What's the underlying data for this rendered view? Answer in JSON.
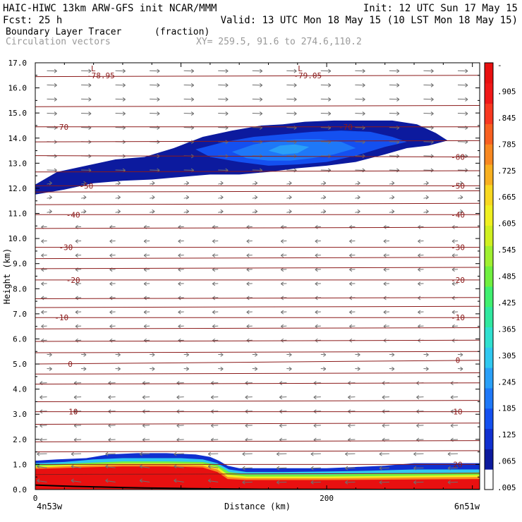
{
  "header": {
    "line1_left": "HAIC-HIWC 13km ARW-GFS init  NCAR/MMM",
    "line1_right": "Init: 12 UTC Sun 17 May 15",
    "line2_left": "Fcst:   25 h",
    "line2_right": "Valid: 13 UTC Mon 18 May 15 (10 LST Mon 18 May 15)",
    "field_name": "Boundary Layer Tracer",
    "field_units": "(fraction)",
    "vector_label": "Circulation vectors",
    "xy_label": "XY= 259.5, 91.6 to 274.6,110.2"
  },
  "colors": {
    "contour_line": "#8b1a1a",
    "vector": "#707070",
    "text": "#000000",
    "scale": [
      "#ffffff",
      "#0c1a9e",
      "#1030d0",
      "#1450f0",
      "#1e78f8",
      "#2aa0f8",
      "#30c8f0",
      "#30e0d0",
      "#30e8a0",
      "#40f070",
      "#70f040",
      "#a0f030",
      "#d0f020",
      "#f0f020",
      "#f8d820",
      "#f8b020",
      "#f88820",
      "#f86020",
      "#f83820",
      "#f01818",
      "#e81010"
    ]
  },
  "chart_data": {
    "type": "contour",
    "title": "Boundary Layer Tracer",
    "units": "(fraction)",
    "xlabel": "Distance (km)",
    "ylabel": "Height (km)",
    "xlim": [
      0,
      305
    ],
    "ylim": [
      0,
      17
    ],
    "x_ticks": [
      {
        "value": 0,
        "label": "0"
      },
      {
        "value": 200,
        "label": "200"
      }
    ],
    "x_end_labels": {
      "left": "4n53w",
      "right": "6n51w"
    },
    "y_ticks": [
      0.0,
      1.0,
      2.0,
      3.0,
      4.0,
      5.0,
      6.0,
      7.0,
      8.0,
      9.0,
      10.0,
      11.0,
      12.0,
      13.0,
      14.0,
      15.0,
      16.0,
      17.0
    ],
    "y_tick_labels": [
      "0.0",
      "1.0",
      "2.0",
      "3.0",
      "4.0",
      "5.0",
      "6.0",
      "7.0",
      "8.0",
      "9.0",
      "10.0",
      "11.0",
      "12.0",
      "13.0",
      "14.0",
      "15.0",
      "16.0",
      "17.0"
    ],
    "colorbar_labels": [
      "-",
      ".905",
      ".845",
      ".785",
      ".725",
      ".665",
      ".605",
      ".545",
      ".485",
      ".425",
      ".365",
      ".305",
      ".245",
      ".185",
      ".125",
      ".065",
      ".005"
    ],
    "temperature_contours": [
      {
        "label": "-70",
        "y_left": 14.45,
        "y_right": 14.45,
        "label_at": [
          {
            "x": 18,
            "y": 14.45
          },
          {
            "x": 213,
            "y": 14.45
          }
        ]
      },
      {
        "label": "-60",
        "y_left": 13.3,
        "y_right": 13.25,
        "label_at": [
          {
            "x": 290,
            "y": 13.25
          }
        ]
      },
      {
        "label": "-50",
        "y_left": 12.1,
        "y_right": 12.1,
        "label_at": [
          {
            "x": 35,
            "y": 12.1
          },
          {
            "x": 290,
            "y": 12.1
          }
        ]
      },
      {
        "label": "-40",
        "y_left": 10.95,
        "y_right": 10.95,
        "label_at": [
          {
            "x": 26,
            "y": 10.95
          },
          {
            "x": 290,
            "y": 10.95
          }
        ]
      },
      {
        "label": "-30",
        "y_left": 9.65,
        "y_right": 9.65,
        "label_at": [
          {
            "x": 21,
            "y": 9.65
          },
          {
            "x": 290,
            "y": 9.65
          }
        ]
      },
      {
        "label": "-20",
        "y_left": 8.35,
        "y_right": 8.35,
        "label_at": [
          {
            "x": 26,
            "y": 8.35
          },
          {
            "x": 290,
            "y": 8.35
          }
        ]
      },
      {
        "label": "-10",
        "y_left": 6.85,
        "y_right": 6.85,
        "label_at": [
          {
            "x": 18,
            "y": 6.85
          },
          {
            "x": 290,
            "y": 6.85
          }
        ]
      },
      {
        "label": "0",
        "y_left": 5.0,
        "y_right": 5.15,
        "label_at": [
          {
            "x": 24,
            "y": 5.0
          },
          {
            "x": 290,
            "y": 5.15
          }
        ]
      },
      {
        "label": "10",
        "y_left": 3.1,
        "y_right": 3.1,
        "label_at": [
          {
            "x": 26,
            "y": 3.1
          },
          {
            "x": 290,
            "y": 3.1
          }
        ]
      },
      {
        "label": "20",
        "y_left": 1.0,
        "y_right": 1.0,
        "label_at": [
          {
            "x": 290,
            "y": 1.0
          }
        ]
      }
    ],
    "unlabeled_contour_levels": [
      16.45,
      15.25,
      13.85,
      12.65,
      11.85,
      11.35,
      10.4,
      9.2,
      8.8,
      7.6,
      7.25,
      6.4,
      5.9,
      5.45,
      4.6,
      4.2,
      3.5,
      2.6,
      1.9,
      1.5,
      0.6
    ],
    "pressure_lows": [
      {
        "marker": "L",
        "value": "-78.95",
        "x": 45,
        "y": 16.95
      },
      {
        "marker": "L",
        "value": "-79.05",
        "x": 187,
        "y": 16.95
      }
    ],
    "tracer_regions": [
      {
        "level": "low",
        "color": "#0c1a9e",
        "upper": [
          [
            0,
            12.15
          ],
          [
            15,
            12.65
          ],
          [
            35,
            12.9
          ],
          [
            55,
            13.15
          ],
          [
            75,
            13.25
          ],
          [
            95,
            13.6
          ],
          [
            115,
            14.05
          ],
          [
            135,
            14.3
          ],
          [
            155,
            14.5
          ],
          [
            170,
            14.55
          ],
          [
            185,
            14.65
          ],
          [
            205,
            14.7
          ],
          [
            225,
            14.7
          ],
          [
            245,
            14.7
          ],
          [
            262,
            14.55
          ],
          [
            275,
            14.2
          ],
          [
            283,
            13.9
          ]
        ],
        "lower": [
          [
            283,
            13.9
          ],
          [
            270,
            13.7
          ],
          [
            255,
            13.6
          ],
          [
            240,
            13.35
          ],
          [
            220,
            13.05
          ],
          [
            200,
            12.9
          ],
          [
            180,
            12.8
          ],
          [
            160,
            12.65
          ],
          [
            140,
            12.55
          ],
          [
            120,
            12.55
          ],
          [
            100,
            12.45
          ],
          [
            80,
            12.35
          ],
          [
            60,
            12.3
          ],
          [
            40,
            12.2
          ],
          [
            20,
            11.95
          ],
          [
            0,
            11.75
          ]
        ]
      },
      {
        "level": "mid",
        "color": "#1450f0",
        "upper": [
          [
            110,
            13.55
          ],
          [
            130,
            13.85
          ],
          [
            150,
            14.05
          ],
          [
            170,
            14.15
          ],
          [
            190,
            14.25
          ],
          [
            210,
            14.3
          ],
          [
            230,
            14.25
          ],
          [
            245,
            14.05
          ],
          [
            255,
            13.85
          ]
        ],
        "lower": [
          [
            255,
            13.85
          ],
          [
            240,
            13.65
          ],
          [
            220,
            13.3
          ],
          [
            200,
            13.05
          ],
          [
            180,
            12.95
          ],
          [
            160,
            12.9
          ],
          [
            140,
            13.05
          ],
          [
            120,
            13.25
          ],
          [
            110,
            13.55
          ]
        ]
      },
      {
        "level": "high",
        "color": "#1e78f8",
        "upper": [
          [
            135,
            13.45
          ],
          [
            150,
            13.75
          ],
          [
            165,
            13.9
          ],
          [
            180,
            13.95
          ],
          [
            195,
            13.95
          ],
          [
            210,
            13.85
          ],
          [
            220,
            13.6
          ]
        ],
        "lower": [
          [
            220,
            13.6
          ],
          [
            205,
            13.35
          ],
          [
            190,
            13.2
          ],
          [
            175,
            13.1
          ],
          [
            160,
            13.1
          ],
          [
            145,
            13.2
          ],
          [
            135,
            13.45
          ]
        ]
      },
      {
        "level": "peak",
        "color": "#2aa0f8",
        "upper": [
          [
            160,
            13.5
          ],
          [
            168,
            13.7
          ],
          [
            178,
            13.75
          ],
          [
            188,
            13.65
          ]
        ],
        "lower": [
          [
            188,
            13.65
          ],
          [
            180,
            13.4
          ],
          [
            170,
            13.35
          ],
          [
            160,
            13.5
          ]
        ]
      },
      {
        "level": "bl_low",
        "color": "#1030d0",
        "upper": [
          [
            0,
            1.15
          ],
          [
            15,
            1.2
          ],
          [
            35,
            1.25
          ],
          [
            50,
            1.4
          ],
          [
            70,
            1.45
          ],
          [
            90,
            1.45
          ],
          [
            110,
            1.4
          ],
          [
            120,
            1.3
          ],
          [
            126,
            1.15
          ],
          [
            132,
            0.95
          ],
          [
            140,
            0.85
          ],
          [
            160,
            0.85
          ],
          [
            180,
            0.85
          ],
          [
            200,
            0.85
          ],
          [
            220,
            0.9
          ],
          [
            240,
            0.95
          ],
          [
            260,
            1.05
          ],
          [
            280,
            1.05
          ],
          [
            305,
            1.05
          ]
        ],
        "lower": [
          [
            305,
            0
          ],
          [
            0,
            0
          ]
        ]
      },
      {
        "level": "bl_mid",
        "color": "#30c8f0",
        "upper": [
          [
            0,
            1.05
          ],
          [
            20,
            1.1
          ],
          [
            40,
            1.2
          ],
          [
            60,
            1.25
          ],
          [
            80,
            1.25
          ],
          [
            100,
            1.25
          ],
          [
            115,
            1.2
          ],
          [
            125,
            1.05
          ],
          [
            133,
            0.8
          ],
          [
            145,
            0.7
          ],
          [
            170,
            0.7
          ],
          [
            200,
            0.72
          ],
          [
            230,
            0.75
          ],
          [
            260,
            0.8
          ],
          [
            305,
            0.8
          ]
        ],
        "lower": [
          [
            305,
            0
          ],
          [
            0,
            0
          ]
        ]
      },
      {
        "level": "bl_green",
        "color": "#70f040",
        "upper": [
          [
            0,
            0.98
          ],
          [
            30,
            1.05
          ],
          [
            60,
            1.12
          ],
          [
            90,
            1.12
          ],
          [
            115,
            1.1
          ],
          [
            125,
            0.98
          ],
          [
            133,
            0.7
          ],
          [
            145,
            0.6
          ],
          [
            200,
            0.6
          ],
          [
            260,
            0.65
          ],
          [
            305,
            0.68
          ]
        ],
        "lower": [
          [
            305,
            0
          ],
          [
            0,
            0
          ]
        ]
      },
      {
        "level": "bl_yellow",
        "color": "#f0f020",
        "upper": [
          [
            0,
            0.93
          ],
          [
            30,
            1.0
          ],
          [
            60,
            1.05
          ],
          [
            90,
            1.05
          ],
          [
            115,
            1.03
          ],
          [
            125,
            0.9
          ],
          [
            132,
            0.6
          ],
          [
            145,
            0.52
          ],
          [
            200,
            0.52
          ],
          [
            260,
            0.55
          ],
          [
            305,
            0.58
          ]
        ],
        "lower": [
          [
            305,
            0
          ],
          [
            0,
            0
          ]
        ]
      },
      {
        "level": "bl_orange",
        "color": "#f88820",
        "upper": [
          [
            0,
            0.88
          ],
          [
            30,
            0.95
          ],
          [
            60,
            0.98
          ],
          [
            90,
            0.98
          ],
          [
            115,
            0.95
          ],
          [
            125,
            0.8
          ],
          [
            132,
            0.5
          ],
          [
            145,
            0.45
          ],
          [
            200,
            0.45
          ],
          [
            260,
            0.48
          ],
          [
            305,
            0.5
          ]
        ],
        "lower": [
          [
            305,
            0
          ],
          [
            0,
            0
          ]
        ]
      },
      {
        "level": "bl_red",
        "color": "#e81010",
        "upper": [
          [
            0,
            0.82
          ],
          [
            30,
            0.88
          ],
          [
            60,
            0.92
          ],
          [
            90,
            0.92
          ],
          [
            115,
            0.88
          ],
          [
            125,
            0.7
          ],
          [
            132,
            0.42
          ],
          [
            145,
            0.38
          ],
          [
            200,
            0.38
          ],
          [
            260,
            0.4
          ],
          [
            305,
            0.42
          ]
        ],
        "lower": [
          [
            305,
            0
          ],
          [
            0,
            0
          ]
        ]
      }
    ],
    "terrain": [
      [
        0,
        0.18
      ],
      [
        30,
        0.12
      ],
      [
        60,
        0.08
      ],
      [
        90,
        0.05
      ],
      [
        120,
        0.03
      ],
      [
        140,
        0.02
      ],
      [
        170,
        0.0
      ],
      [
        305,
        0.0
      ]
    ]
  }
}
